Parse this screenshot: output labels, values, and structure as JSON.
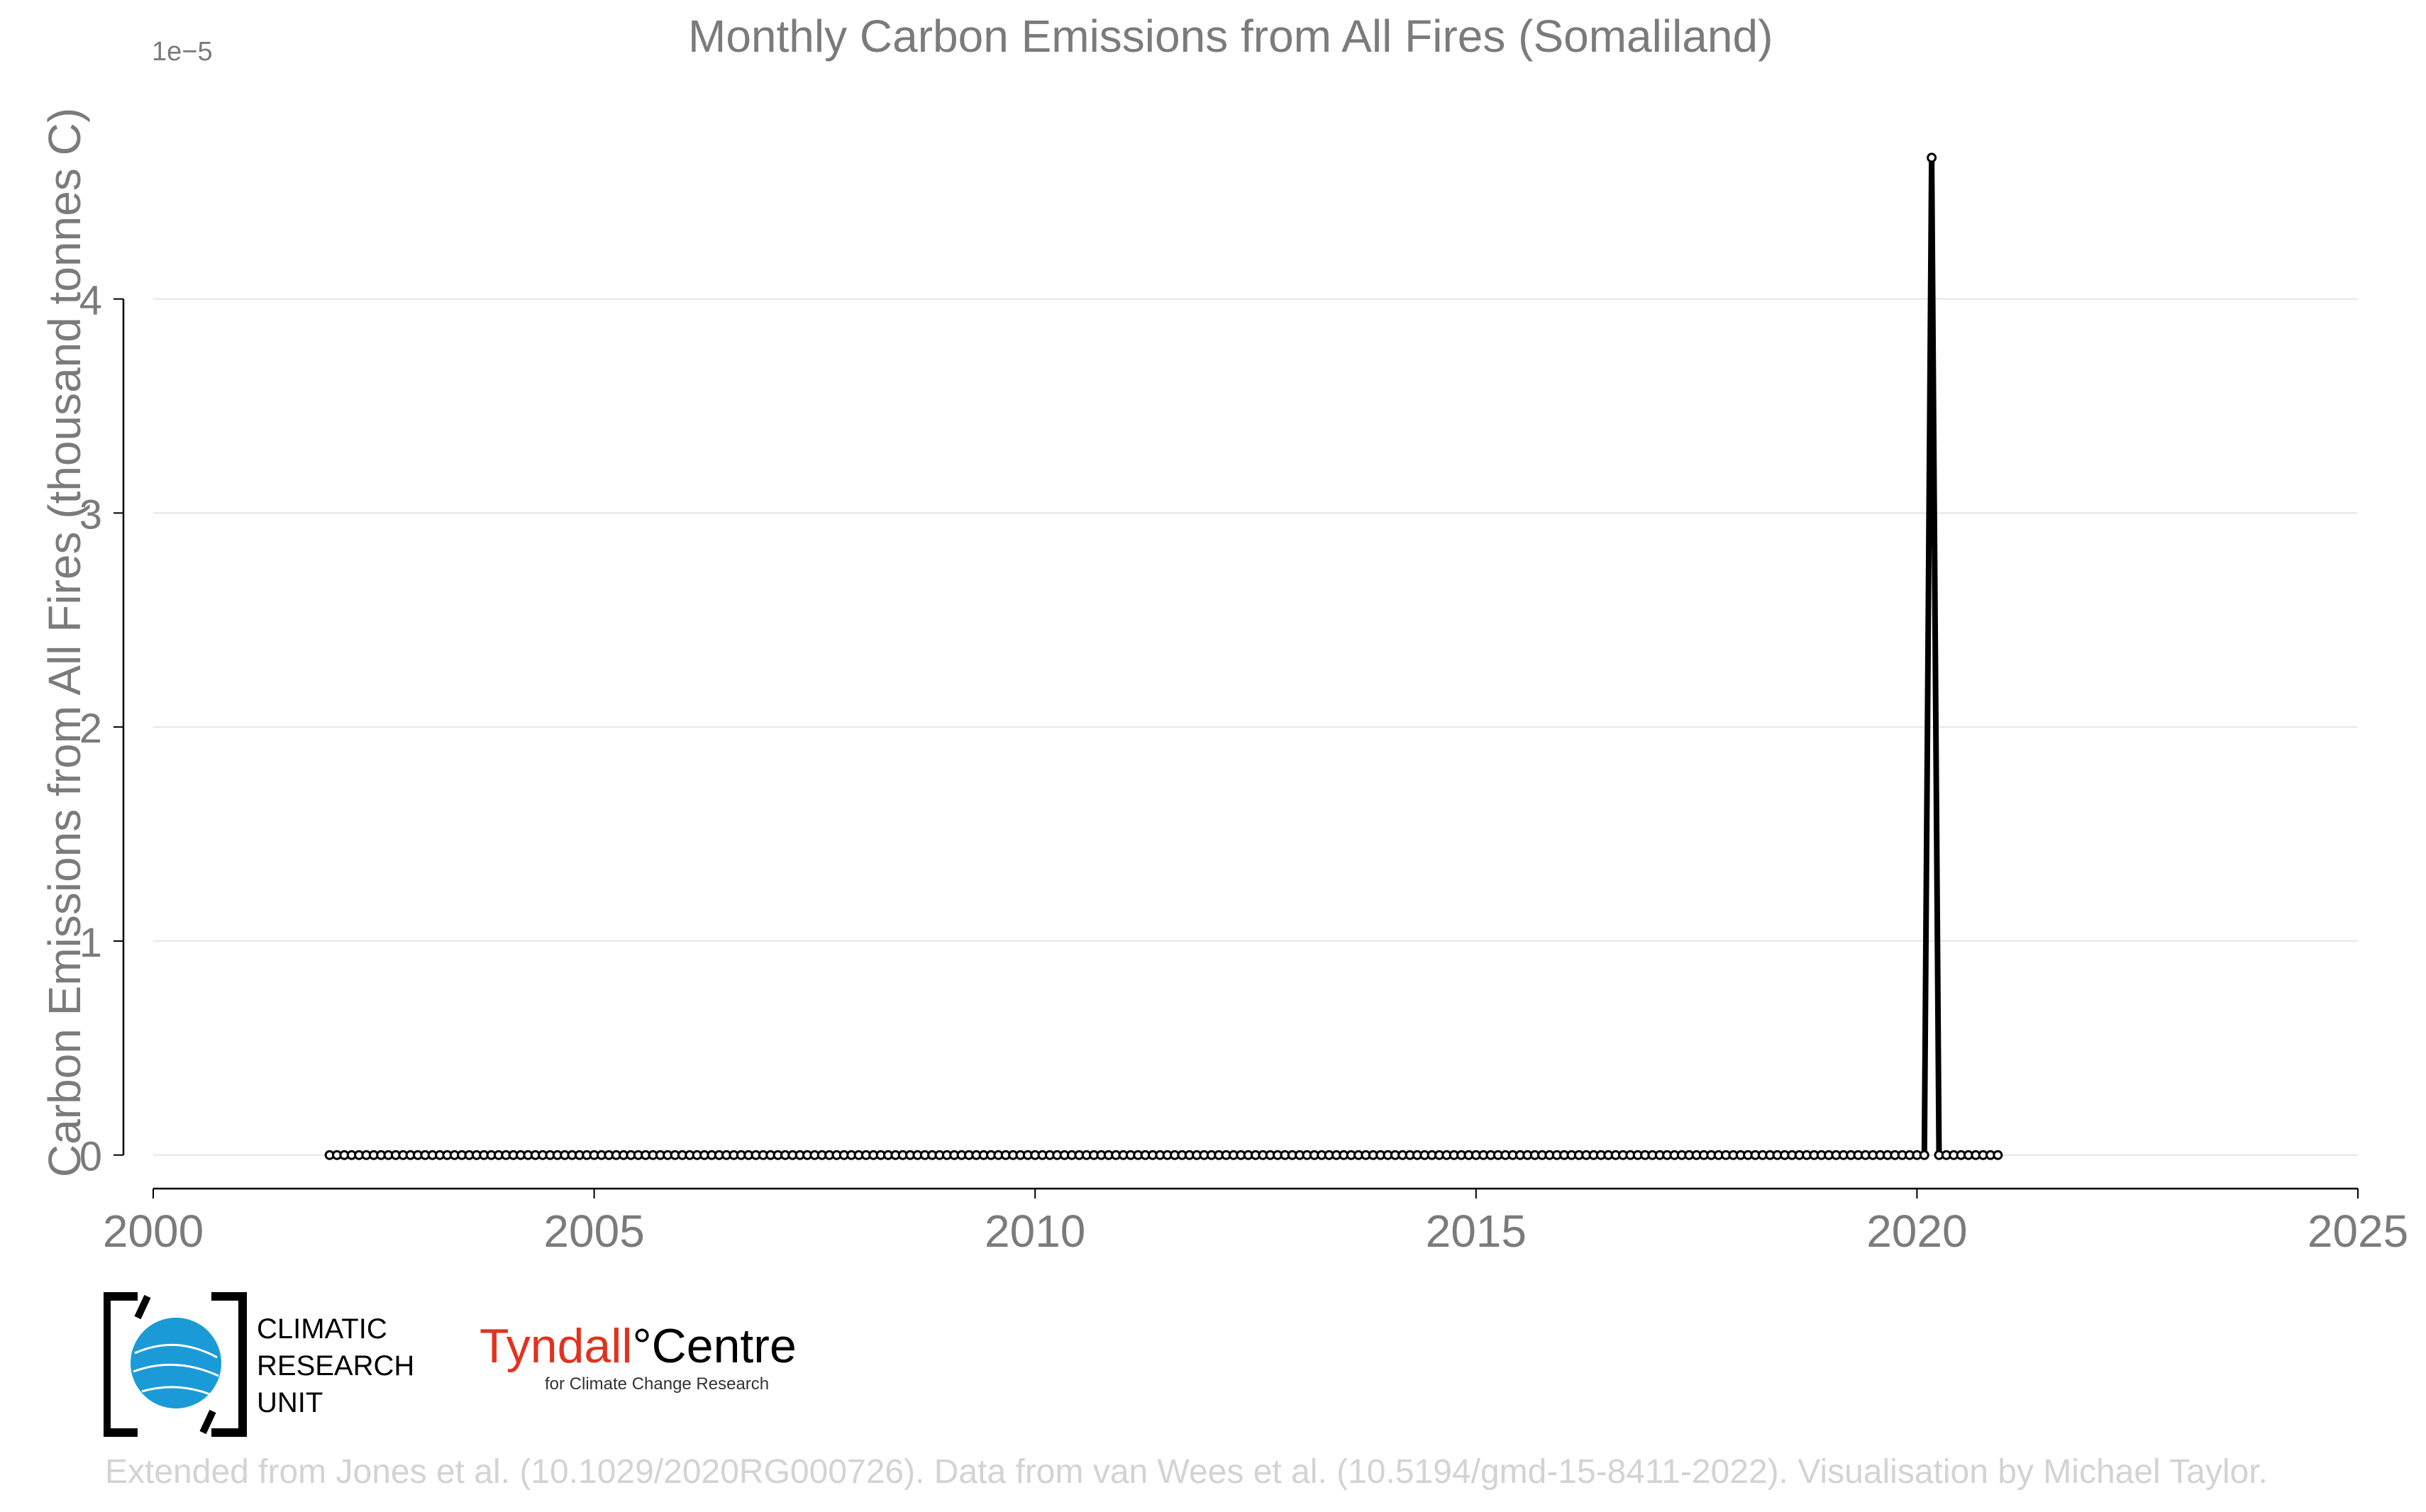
{
  "chart_data": {
    "type": "line",
    "title": "Monthly Carbon Emissions from All Fires (Somaliland)",
    "ylabel": "Carbon Emissions from All Fires (thousand tonnes C)",
    "xlabel": "",
    "y_exponent_label": "1e−5",
    "xlim": [
      2000,
      2025
    ],
    "ylim": [
      -0.17,
      4.9
    ],
    "x_ticks": [
      2000,
      2005,
      2010,
      2015,
      2020,
      2025
    ],
    "y_ticks": [
      0,
      1,
      2,
      3,
      4
    ],
    "grid": "horizontal",
    "series": [
      {
        "color": "#000000",
        "marker": "open-circle",
        "x_start": "2002-01",
        "x_end": "2020-12",
        "frequency": "monthly",
        "baseline_value": 0,
        "peaks": [
          {
            "x": "2020-03",
            "value": 4.66
          }
        ]
      }
    ]
  },
  "footer": "Extended from Jones et al. (10.1029/2020RG000726). Data from van Wees et al. (10.5194/gmd-15-8411-2022). Visualisation by Michael Taylor.",
  "logos": {
    "cru_lines": [
      "CLIMATIC",
      "RESEARCH",
      "UNIT"
    ],
    "tyndall_name": "Tyndall",
    "tyndall_degree": "°",
    "tyndall_centre": "Centre",
    "tyndall_sub": "for Climate Change Research"
  },
  "colors": {
    "axis_text": "#7b7b7b",
    "grid": "#e5e5e5",
    "line": "#000000",
    "tyndall_red": "#e2321f",
    "cru_blue": "#1a9bd7"
  }
}
